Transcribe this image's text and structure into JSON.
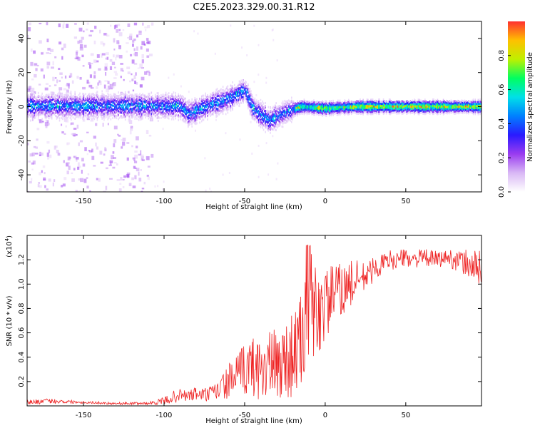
{
  "figure_title": "C2E5.2023.329.00.31.R12",
  "colors": {
    "snr_line": "#ee2222",
    "spectrogram_colormap": [
      "#ffffff",
      "#d9b8f5",
      "#9a3cf0",
      "#2a1aff",
      "#0080ff",
      "#00e0e8",
      "#00ff60",
      "#bff000",
      "#ffc000",
      "#ff3030"
    ]
  },
  "chart_data": [
    {
      "type": "heatmap",
      "title": "",
      "xlabel": "Height of straight line (km)",
      "ylabel": "Frequency (Hz)",
      "xlim": [
        -185,
        97
      ],
      "ylim": [
        -50,
        50
      ],
      "x_ticks": [
        -150,
        -100,
        -50,
        0,
        50
      ],
      "x_tick_labels": [
        "-150",
        "-100",
        "-50",
        "0",
        "50"
      ],
      "y_ticks": [
        -40,
        -20,
        0,
        20,
        40
      ],
      "y_tick_labels": [
        "-40",
        "-20",
        "0",
        "20",
        "40"
      ],
      "grid": false,
      "description_ridge": [
        {
          "x": -185,
          "y": 0.5
        },
        {
          "x": -90,
          "y": 0.5
        },
        {
          "x": -85,
          "y": -4
        },
        {
          "x": -75,
          "y": 0
        },
        {
          "x": -60,
          "y": 5
        },
        {
          "x": -50,
          "y": 10
        },
        {
          "x": -45,
          "y": -1
        },
        {
          "x": -35,
          "y": -8
        },
        {
          "x": -25,
          "y": -3
        },
        {
          "x": -15,
          "y": 0
        },
        {
          "x": 0,
          "y": -1
        },
        {
          "x": 20,
          "y": 0
        },
        {
          "x": 97,
          "y": 0
        }
      ],
      "noise_band_x": [
        -185,
        -108
      ],
      "colorbar": {
        "label": "Normalized spectral amplitude",
        "range": [
          0,
          1
        ],
        "ticks": [
          0.0,
          0.2,
          0.4,
          0.6,
          0.8
        ],
        "tick_labels": [
          "0.0",
          "0.2",
          "0.4",
          "0.6",
          "0.8"
        ]
      }
    },
    {
      "type": "line",
      "title": "",
      "xlabel": "Height of straight line (km)",
      "ylabel": "SNR (10 * v/v)",
      "y_multiplier_label": "(x10",
      "y_multiplier_exponent": "4",
      "y_multiplier_close": ")",
      "xlim": [
        -185,
        97
      ],
      "ylim": [
        0,
        1.4
      ],
      "x_ticks": [
        -150,
        -100,
        -50,
        0,
        50
      ],
      "x_tick_labels": [
        "-150",
        "-100",
        "-50",
        "0",
        "50"
      ],
      "y_ticks": [
        0.2,
        0.4,
        0.6,
        0.8,
        1.0,
        1.2
      ],
      "y_tick_labels": [
        "0.2",
        "0.4",
        "0.6",
        "0.8",
        "1.0",
        "1.2"
      ],
      "grid": false,
      "series": [
        {
          "name": "SNR",
          "x": [
            -185,
            -170,
            -150,
            -130,
            -110,
            -100,
            -95,
            -90,
            -85,
            -80,
            -75,
            -70,
            -65,
            -60,
            -55,
            -50,
            -45,
            -40,
            -35,
            -30,
            -25,
            -20,
            -15,
            -12,
            -10,
            -8,
            -5,
            0,
            5,
            10,
            15,
            20,
            25,
            30,
            35,
            40,
            45,
            50,
            55,
            60,
            65,
            70,
            75,
            80,
            85,
            90,
            95
          ],
          "values": [
            0.03,
            0.04,
            0.03,
            0.02,
            0.02,
            0.04,
            0.07,
            0.09,
            0.08,
            0.1,
            0.09,
            0.1,
            0.14,
            0.2,
            0.24,
            0.3,
            0.33,
            0.3,
            0.34,
            0.32,
            0.38,
            0.42,
            0.52,
            0.7,
            0.85,
            0.8,
            0.76,
            0.83,
            0.92,
            0.95,
            1.0,
            1.02,
            1.06,
            1.12,
            1.16,
            1.2,
            1.2,
            1.22,
            1.2,
            1.22,
            1.21,
            1.2,
            1.22,
            1.2,
            1.18,
            1.16,
            1.12
          ],
          "amplitude_spread": [
            0.02,
            0.02,
            0.01,
            0.01,
            0.01,
            0.03,
            0.05,
            0.05,
            0.05,
            0.06,
            0.06,
            0.07,
            0.1,
            0.14,
            0.18,
            0.22,
            0.25,
            0.26,
            0.3,
            0.3,
            0.33,
            0.35,
            0.4,
            0.45,
            0.5,
            0.45,
            0.4,
            0.3,
            0.25,
            0.22,
            0.2,
            0.18,
            0.12,
            0.1,
            0.09,
            0.08,
            0.08,
            0.07,
            0.07,
            0.07,
            0.07,
            0.07,
            0.07,
            0.08,
            0.1,
            0.14,
            0.16
          ]
        }
      ]
    }
  ]
}
